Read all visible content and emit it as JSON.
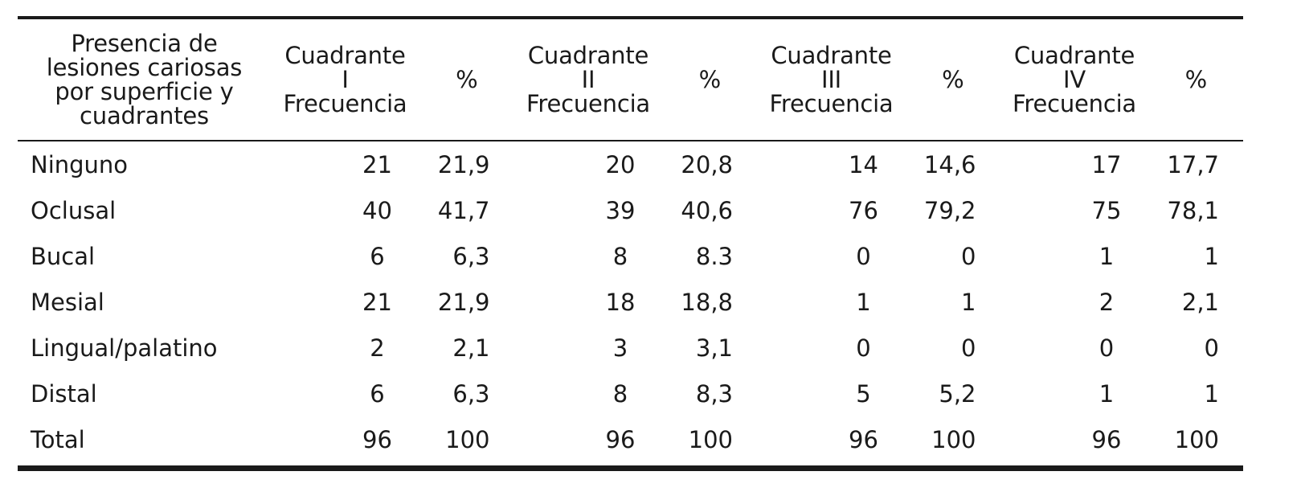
{
  "table": {
    "header": {
      "first_col": [
        "Presencia de",
        "lesiones cariosas",
        "por superficie y",
        "cuadrantes"
      ],
      "quadrants": [
        {
          "freq_lines": [
            "Cuadrante",
            "I",
            "Frecuencia"
          ],
          "pct": "%"
        },
        {
          "freq_lines": [
            "Cuadrante",
            "II",
            "Frecuencia"
          ],
          "pct": "%"
        },
        {
          "freq_lines": [
            "Cuadrante",
            "III",
            "Frecuencia"
          ],
          "pct": "%"
        },
        {
          "freq_lines": [
            "Cuadrante",
            "IV",
            "Frecuencia"
          ],
          "pct": "%"
        }
      ]
    },
    "rows": [
      {
        "label": "Ninguno",
        "cells": [
          "21",
          "21,9",
          "20",
          "20,8",
          "14",
          "14,6",
          "17",
          "17,7"
        ]
      },
      {
        "label": "Oclusal",
        "cells": [
          "40",
          "41,7",
          "39",
          "40,6",
          "76",
          "79,2",
          "75",
          "78,1"
        ]
      },
      {
        "label": "Bucal",
        "cells": [
          "6",
          "6,3",
          "8",
          "8.3",
          "0",
          "0",
          "1",
          "1"
        ]
      },
      {
        "label": "Mesial",
        "cells": [
          "21",
          "21,9",
          "18",
          "18,8",
          "1",
          "1",
          "2",
          "2,1"
        ]
      },
      {
        "label": "Lingual/palatino",
        "cells": [
          "2",
          "2,1",
          "3",
          "3,1",
          "0",
          "0",
          "0",
          "0"
        ]
      },
      {
        "label": "Distal",
        "cells": [
          "6",
          "6,3",
          "8",
          "8,3",
          "5",
          "5,2",
          "1",
          "1"
        ]
      },
      {
        "label": "Total",
        "cells": [
          "96",
          "100",
          "96",
          "100",
          "96",
          "100",
          "96",
          "100"
        ]
      }
    ]
  }
}
